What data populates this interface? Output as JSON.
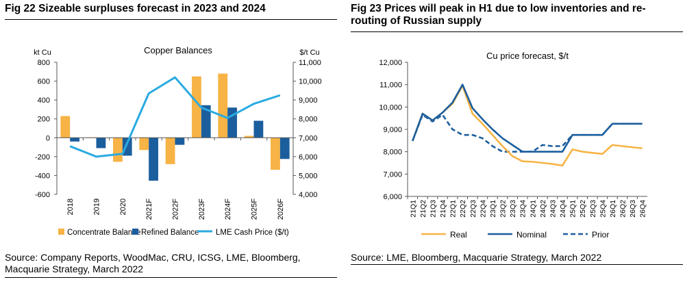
{
  "fig22": {
    "title": "Fig 22   Sizeable surpluses forecast in 2023 and 2024",
    "source": "Source: Company Reports, WoodMac, CRU, ICSG, LME, Bloomberg, Macquarie Strategy, March 2022"
  },
  "fig23": {
    "title": "Fig 23   Prices will peak in H1 due to low inventories and re-routing of Russian supply",
    "source": "Source: LME, Bloomberg, Macquarie Strategy, March 2022"
  },
  "colors": {
    "concentrate": "#F7B345",
    "refined": "#1B5E9E",
    "lme": "#2AAAE1",
    "real": "#F7B345",
    "nominal": "#1B5E9E",
    "prior": "#1B5E9E"
  },
  "chart_data": [
    {
      "type": "bar",
      "title": "Copper Balances",
      "ylabel": "kt Cu",
      "y2label": "$/t Cu",
      "categories": [
        "2018",
        "2019",
        "2020",
        "2021F",
        "2022F",
        "2023F",
        "2024F",
        "2025F",
        "2026F"
      ],
      "ylim": [
        -600,
        800
      ],
      "y2lim": [
        4000,
        11000
      ],
      "yticks": [
        "800",
        "600",
        "400",
        "200",
        "0",
        "-200",
        "-400",
        "-600"
      ],
      "y2ticks": [
        "11,000",
        "10,000",
        "9,000",
        "8,000",
        "7,000",
        "6,000",
        "5,000",
        "4,000"
      ],
      "series": [
        {
          "name": "Concentrate Balance",
          "type": "bar",
          "axis": "left",
          "values": [
            230,
            5,
            -255,
            -130,
            -280,
            650,
            680,
            20,
            -340
          ]
        },
        {
          "name": "Refined Balance",
          "type": "bar",
          "axis": "left",
          "values": [
            -40,
            -110,
            -190,
            -455,
            -75,
            345,
            320,
            180,
            -225
          ]
        },
        {
          "name": "LME Cash Price ($/t)",
          "type": "line",
          "axis": "right",
          "values": [
            6550,
            6000,
            6150,
            9350,
            10200,
            8600,
            8050,
            8800,
            9250
          ]
        }
      ],
      "legend": "bottom",
      "grid": false
    },
    {
      "type": "line",
      "title": "Cu price forecast, $/t",
      "categories": [
        "21Q1",
        "21Q2",
        "21Q3",
        "21Q4",
        "22Q1",
        "22Q2",
        "22Q3",
        "22Q4",
        "23Q1",
        "23Q2",
        "23Q3",
        "23Q4",
        "24Q1",
        "24Q2",
        "24Q3",
        "24Q4",
        "25Q1",
        "25Q2",
        "25Q3",
        "25Q4",
        "26Q1",
        "26Q2",
        "26Q3",
        "26Q4"
      ],
      "ylim": [
        6000,
        12000
      ],
      "yticks": [
        "12,000",
        "11,000",
        "10,000",
        "9,000",
        "8,000",
        "7,000",
        "6,000"
      ],
      "series": [
        {
          "name": "Real",
          "style": "solid",
          "x": [
            "21Q1",
            "21Q2",
            "21Q3",
            "21Q4",
            "22Q1",
            "22Q2",
            "22Q3",
            "22Q4",
            "23Q1",
            "23Q2",
            "23Q3",
            "23Q4",
            "24Q1",
            "24Q2",
            "24Q3",
            "24Q4",
            "25Q1",
            "25Q2",
            "25Q3",
            "25Q4",
            "26Q1",
            "26Q2",
            "26Q3",
            "26Q4"
          ],
          "values": [
            8480,
            9700,
            9400,
            9750,
            10150,
            10950,
            9700,
            9250,
            8750,
            8250,
            7800,
            7570,
            7550,
            7500,
            7450,
            7380,
            8100,
            8000,
            7950,
            7900,
            8300,
            8250,
            8200,
            8150
          ]
        },
        {
          "name": "Nominal",
          "style": "solid",
          "x": [
            "21Q1",
            "21Q2",
            "21Q3",
            "21Q4",
            "22Q1",
            "22Q2",
            "22Q3",
            "22Q4",
            "23Q1",
            "23Q2",
            "23Q3",
            "23Q4",
            "24Q1",
            "24Q2",
            "24Q3",
            "24Q4",
            "25Q1",
            "25Q2",
            "25Q3",
            "25Q4",
            "26Q1",
            "26Q2",
            "26Q3",
            "26Q4"
          ],
          "values": [
            8480,
            9700,
            9400,
            9750,
            10200,
            11000,
            9950,
            9450,
            9000,
            8600,
            8300,
            8000,
            8000,
            8000,
            8000,
            8000,
            8750,
            8750,
            8750,
            8750,
            9250,
            9250,
            9250,
            9250
          ]
        },
        {
          "name": "Prior",
          "style": "dashed",
          "x": [
            "21Q1",
            "21Q2",
            "21Q3",
            "21Q4",
            "22Q1",
            "22Q2",
            "22Q3",
            "22Q4",
            "23Q1",
            "23Q2",
            "23Q3",
            "23Q4",
            "24Q1",
            "24Q2",
            "24Q3",
            "24Q4",
            "25Q1",
            "25Q2",
            "25Q3",
            "25Q4",
            "26Q1",
            "26Q2",
            "26Q3",
            "26Q4"
          ],
          "values": [
            8480,
            9650,
            9350,
            9650,
            9000,
            8750,
            8750,
            8600,
            8250,
            8000,
            8000,
            8000,
            8000,
            8300,
            8250,
            8250,
            8750,
            8750,
            8750,
            8750,
            9250,
            9250,
            9250,
            9250
          ]
        }
      ],
      "legend": "bottom",
      "grid": false
    }
  ]
}
